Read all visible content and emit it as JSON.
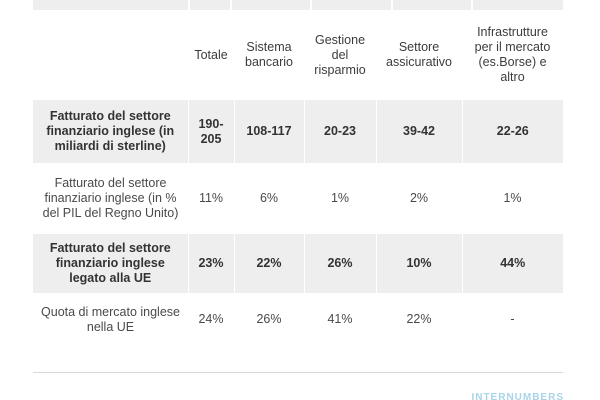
{
  "table": {
    "headers": [
      "",
      "Totale",
      "Sistema bancario",
      "Gestione del risparmio",
      "Settore assicurativo",
      "Infrastrutture per il mercato (es.Borse) e altro"
    ],
    "rows": [
      {
        "label": "Fatturato del settore finanziario inglese (in miliardi di sterline)",
        "values": [
          "190-205",
          "108-117",
          "20-23",
          "39-42",
          "22-26"
        ]
      },
      {
        "label": "Fatturato del settore finanziario inglese (in % del PIL del Regno Unito)",
        "values": [
          "11%",
          "6%",
          "1%",
          "2%",
          "1%"
        ]
      },
      {
        "label": "Fatturato del settore finanziario inglese legato alla UE",
        "values": [
          "23%",
          "22%",
          "26%",
          "10%",
          "44%"
        ]
      },
      {
        "label": "Quota di mercato inglese nella UE",
        "values": [
          "24%",
          "26%",
          "41%",
          "22%",
          "-"
        ]
      }
    ]
  },
  "brand": {
    "text": "INTERNUMBERS"
  },
  "colors": {
    "shaded_row": "#eeeeee",
    "brand": "#a9d4e8"
  },
  "chart_data": {
    "type": "table",
    "columns": [
      "Totale",
      "Sistema bancario",
      "Gestione del risparmio",
      "Settore assicurativo",
      "Infrastrutture per il mercato (es.Borse) e altro"
    ],
    "rows": [
      {
        "name": "Fatturato del settore finanziario inglese (in miliardi di sterline)",
        "values": [
          "190-205",
          "108-117",
          "20-23",
          "39-42",
          "22-26"
        ]
      },
      {
        "name": "Fatturato del settore finanziario inglese (in % del PIL del Regno Unito)",
        "values": [
          "11%",
          "6%",
          "1%",
          "2%",
          "1%"
        ]
      },
      {
        "name": "Fatturato del settore finanziario inglese legato alla UE",
        "values": [
          "23%",
          "22%",
          "26%",
          "10%",
          "44%"
        ]
      },
      {
        "name": "Quota di mercato inglese nella UE",
        "values": [
          "24%",
          "26%",
          "41%",
          "22%",
          "-"
        ]
      }
    ]
  }
}
